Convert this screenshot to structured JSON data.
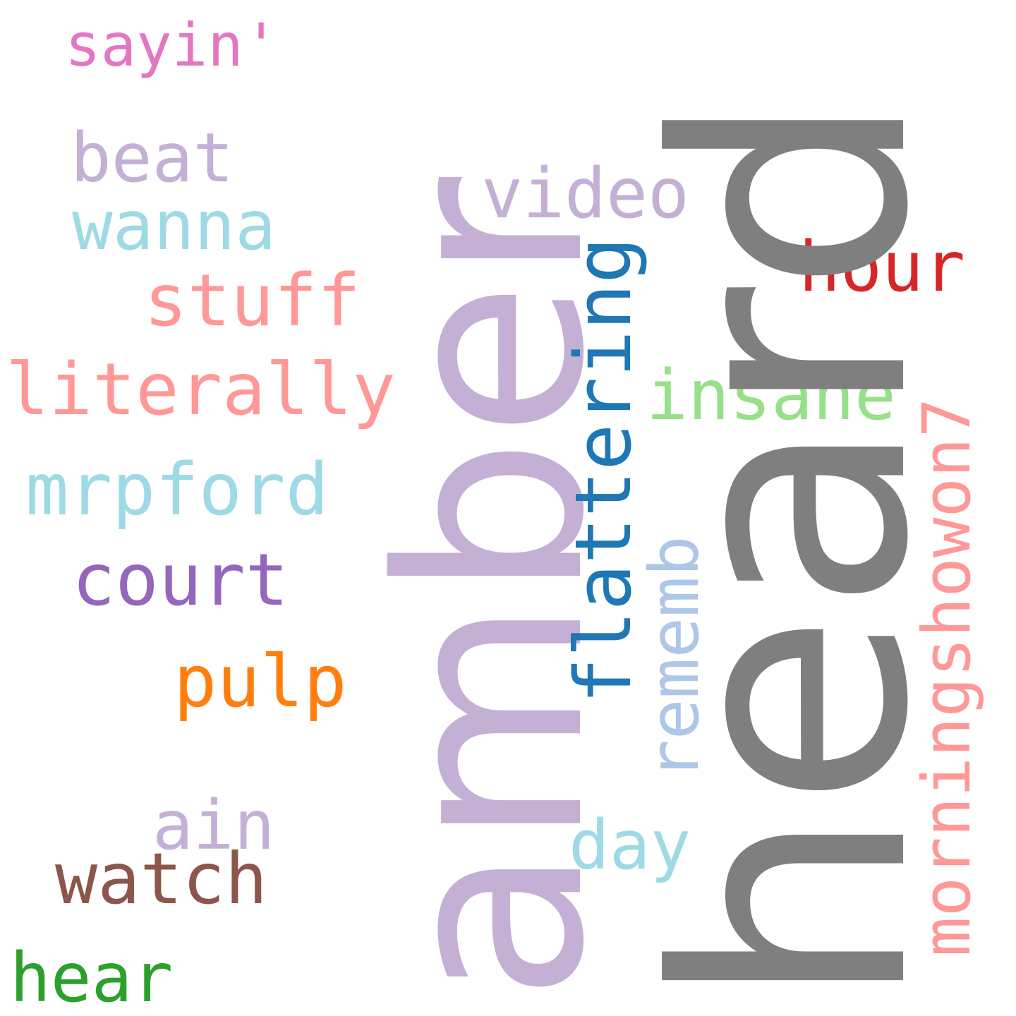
{
  "words": {
    "sayin": {
      "text": "sayin'",
      "color": "#e377c2"
    },
    "beat": {
      "text": "beat",
      "color": "#c5b0d5"
    },
    "wanna": {
      "text": "wanna",
      "color": "#9edae5"
    },
    "stuff": {
      "text": "stuff",
      "color": "#ff9896"
    },
    "literally": {
      "text": "literally",
      "color": "#ff9896"
    },
    "mrpford": {
      "text": "mrpford",
      "color": "#9edae5"
    },
    "court": {
      "text": "court",
      "color": "#9467bd"
    },
    "pulp": {
      "text": "pulp",
      "color": "#ff7f0e"
    },
    "ain": {
      "text": "ain",
      "color": "#c5b0d5"
    },
    "watch": {
      "text": "watch",
      "color": "#8c564b"
    },
    "hear": {
      "text": "hear",
      "color": "#2ca02c"
    },
    "video": {
      "text": "video",
      "color": "#c5b0d5"
    },
    "hour": {
      "text": "hour",
      "color": "#d62728"
    },
    "insane": {
      "text": "insane",
      "color": "#98df8a"
    },
    "day": {
      "text": "day",
      "color": "#9edae5"
    },
    "amber": {
      "text": "amber",
      "color": "#c5b0d5"
    },
    "heard": {
      "text": "heard",
      "color": "#7f7f7f"
    },
    "flattering": {
      "text": "flattering",
      "color": "#1f77b4"
    },
    "rememb": {
      "text": "rememb",
      "color": "#aec7e8"
    },
    "morningshowon7": {
      "text": "morningshowon7",
      "color": "#ff9896"
    }
  }
}
